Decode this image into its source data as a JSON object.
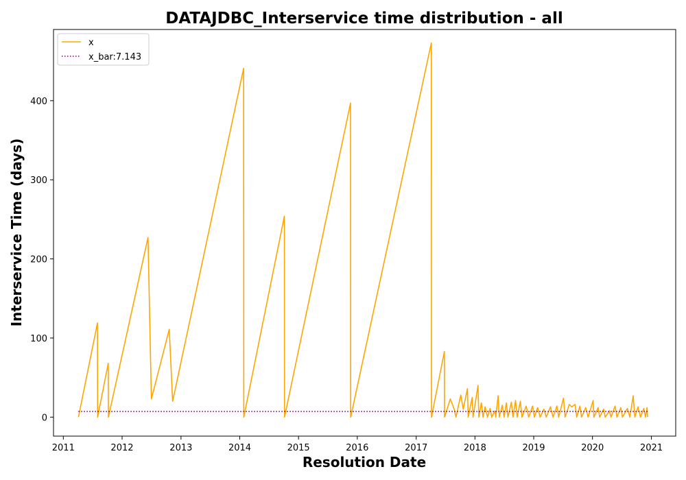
{
  "chart_data": {
    "type": "line",
    "title": "DATAJDBC_Interservice time distribution - all",
    "xlabel": "Resolution Date",
    "ylabel": "Interservice Time (days)",
    "xlim": [
      "2010-11-01",
      "2021-06-01"
    ],
    "ylim": [
      -24,
      490
    ],
    "xticks": [
      "2011",
      "2012",
      "2013",
      "2014",
      "2015",
      "2016",
      "2017",
      "2018",
      "2019",
      "2020",
      "2021"
    ],
    "yticks": [
      0,
      100,
      200,
      300,
      400
    ],
    "legend": {
      "placement": "upper-left",
      "entries": [
        "x",
        "x_bar:7.143"
      ]
    },
    "colors": {
      "x": "#ffa500",
      "x_bar": "#800080"
    },
    "series": [
      {
        "name": "x",
        "style": "solid",
        "points": [
          [
            "2011-04-05",
            0
          ],
          [
            "2011-08-01",
            119
          ],
          [
            "2011-08-02",
            0
          ],
          [
            "2011-10-07",
            68
          ],
          [
            "2011-10-08",
            0
          ],
          [
            "2012-06-10",
            227
          ],
          [
            "2012-07-01",
            23
          ],
          [
            "2012-10-20",
            111
          ],
          [
            "2012-11-10",
            20
          ],
          [
            "2014-01-25",
            441
          ],
          [
            "2014-01-26",
            0
          ],
          [
            "2014-10-05",
            254
          ],
          [
            "2014-10-06",
            0
          ],
          [
            "2015-11-20",
            397
          ],
          [
            "2015-11-21",
            0
          ],
          [
            "2017-04-05",
            473
          ],
          [
            "2017-04-06",
            0
          ],
          [
            "2017-06-25",
            83
          ],
          [
            "2017-06-26",
            0
          ],
          [
            "2017-08-01",
            23
          ],
          [
            "2017-08-25",
            10
          ],
          [
            "2017-09-05",
            0
          ],
          [
            "2017-10-05",
            28
          ],
          [
            "2017-10-20",
            10
          ],
          [
            "2017-11-15",
            36
          ],
          [
            "2017-11-20",
            0
          ],
          [
            "2017-12-15",
            25
          ],
          [
            "2017-12-20",
            0
          ],
          [
            "2018-01-20",
            40
          ],
          [
            "2018-01-25",
            0
          ],
          [
            "2018-02-10",
            18
          ],
          [
            "2018-02-20",
            0
          ],
          [
            "2018-03-05",
            13
          ],
          [
            "2018-03-20",
            0
          ],
          [
            "2018-04-05",
            11
          ],
          [
            "2018-04-15",
            0
          ],
          [
            "2018-05-05",
            8
          ],
          [
            "2018-05-10",
            0
          ],
          [
            "2018-05-25",
            27
          ],
          [
            "2018-06-01",
            0
          ],
          [
            "2018-06-20",
            15
          ],
          [
            "2018-07-01",
            0
          ],
          [
            "2018-07-15",
            18
          ],
          [
            "2018-07-25",
            0
          ],
          [
            "2018-08-15",
            19
          ],
          [
            "2018-08-25",
            0
          ],
          [
            "2018-09-10",
            21
          ],
          [
            "2018-09-20",
            0
          ],
          [
            "2018-10-10",
            20
          ],
          [
            "2018-10-20",
            0
          ],
          [
            "2018-11-15",
            14
          ],
          [
            "2018-12-01",
            0
          ],
          [
            "2018-12-25",
            14
          ],
          [
            "2019-01-05",
            0
          ],
          [
            "2019-01-25",
            12
          ],
          [
            "2019-02-10",
            0
          ],
          [
            "2019-03-05",
            10
          ],
          [
            "2019-03-20",
            0
          ],
          [
            "2019-04-15",
            13
          ],
          [
            "2019-05-01",
            0
          ],
          [
            "2019-05-25",
            14
          ],
          [
            "2019-06-05",
            0
          ],
          [
            "2019-07-05",
            24
          ],
          [
            "2019-07-15",
            0
          ],
          [
            "2019-08-10",
            16
          ],
          [
            "2019-08-25",
            13
          ],
          [
            "2019-09-15",
            16
          ],
          [
            "2019-09-25",
            0
          ],
          [
            "2019-10-15",
            14
          ],
          [
            "2019-10-25",
            0
          ],
          [
            "2019-11-20",
            12
          ],
          [
            "2019-12-05",
            0
          ],
          [
            "2020-01-05",
            21
          ],
          [
            "2020-01-10",
            0
          ],
          [
            "2020-02-05",
            12
          ],
          [
            "2020-02-15",
            0
          ],
          [
            "2020-03-10",
            10
          ],
          [
            "2020-03-20",
            0
          ],
          [
            "2020-04-15",
            8
          ],
          [
            "2020-04-25",
            0
          ],
          [
            "2020-05-20",
            14
          ],
          [
            "2020-06-01",
            0
          ],
          [
            "2020-06-25",
            12
          ],
          [
            "2020-07-05",
            0
          ],
          [
            "2020-08-05",
            11
          ],
          [
            "2020-08-20",
            0
          ],
          [
            "2020-09-10",
            27
          ],
          [
            "2020-09-20",
            0
          ],
          [
            "2020-10-10",
            13
          ],
          [
            "2020-10-25",
            0
          ],
          [
            "2020-11-15",
            11
          ],
          [
            "2020-11-25",
            0
          ],
          [
            "2020-12-05",
            12
          ],
          [
            "2020-12-08",
            0
          ]
        ]
      },
      {
        "name": "x_bar:7.143",
        "style": "dotted",
        "points": [
          [
            "2011-04-05",
            7.143
          ],
          [
            "2020-12-08",
            7.143
          ]
        ]
      }
    ]
  }
}
